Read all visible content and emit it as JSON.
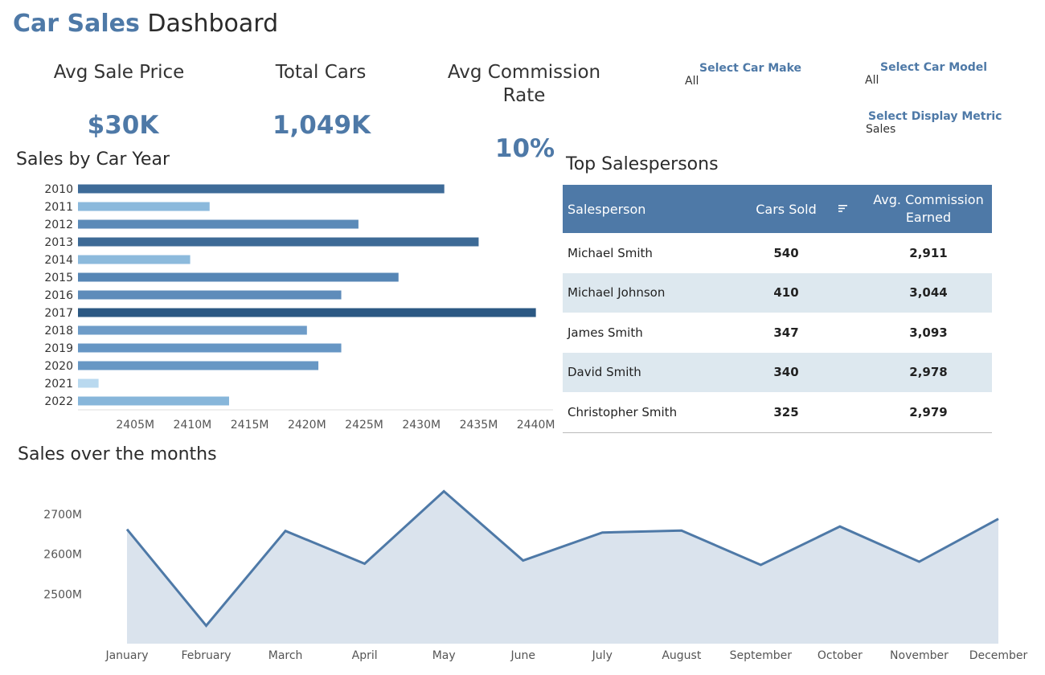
{
  "header": {
    "title_part1": "Car Sales",
    "title_part2": "Dashboard"
  },
  "kpis": [
    {
      "label": "Avg Sale Price",
      "value": "$30K"
    },
    {
      "label": "Total Cars",
      "value": "1,049K"
    },
    {
      "label": "Avg Commission Rate",
      "value": "10%"
    }
  ],
  "filters": {
    "make": {
      "label": "Select Car Make",
      "value": "All"
    },
    "model": {
      "label": "Select Car Model",
      "value": "All"
    },
    "metric": {
      "label": "Select Display Metric",
      "value": "Sales"
    }
  },
  "top_salespersons": {
    "title": "Top Salespersons",
    "columns": [
      "Salesperson",
      "Cars Sold",
      "Avg. Commission Earned"
    ],
    "sort_icon": "sort-descending-icon",
    "rows": [
      {
        "name": "Michael Smith",
        "cars": "540",
        "commission": "2,911"
      },
      {
        "name": "Michael Johnson",
        "cars": "410",
        "commission": "3,044"
      },
      {
        "name": "James Smith",
        "cars": "347",
        "commission": "3,093"
      },
      {
        "name": "David Smith",
        "cars": "340",
        "commission": "2,978"
      },
      {
        "name": "Christopher Smith",
        "cars": "325",
        "commission": "2,979"
      }
    ]
  },
  "colors": {
    "accent": "#4e79a7",
    "area_fill": "#dae3ed",
    "table_alt_row": "#dde8ef"
  },
  "chart_data": [
    {
      "type": "bar",
      "orientation": "horizontal",
      "title": "Sales by Car Year",
      "categories": [
        "2010",
        "2011",
        "2012",
        "2013",
        "2014",
        "2015",
        "2016",
        "2017",
        "2018",
        "2019",
        "2020",
        "2021",
        "2022"
      ],
      "values": [
        2432,
        2411.5,
        2424.5,
        2435,
        2409.8,
        2428,
        2423,
        2440,
        2420,
        2423,
        2421,
        2401.8,
        2413.2
      ],
      "xlim": [
        2400,
        2441.5
      ],
      "xticks": [
        2405,
        2410,
        2415,
        2420,
        2425,
        2430,
        2435,
        2440
      ],
      "xtick_labels": [
        "2405M",
        "2410M",
        "2415M",
        "2420M",
        "2425M",
        "2430M",
        "2435M",
        "2440M"
      ],
      "colors": [
        "#3e6b98",
        "#8bb9dc",
        "#5b8ab8",
        "#3d6a96",
        "#8cbadc",
        "#5686b5",
        "#5e8cba",
        "#2b5883",
        "#6e9cc8",
        "#6696c4",
        "#6797c4",
        "#b9d9ef",
        "#87b6da"
      ]
    },
    {
      "type": "area",
      "title": "Sales over the months",
      "categories": [
        "January",
        "February",
        "March",
        "April",
        "May",
        "June",
        "July",
        "August",
        "September",
        "October",
        "November",
        "December"
      ],
      "values": [
        2662,
        2421,
        2658,
        2576,
        2757,
        2584,
        2654,
        2659,
        2573,
        2669,
        2581,
        2688
      ],
      "ylim": [
        2376,
        2800
      ],
      "yticks": [
        2500,
        2600,
        2700
      ],
      "ytick_labels": [
        "2500M",
        "2600M",
        "2700M"
      ],
      "color": "#4e79a7"
    }
  ]
}
